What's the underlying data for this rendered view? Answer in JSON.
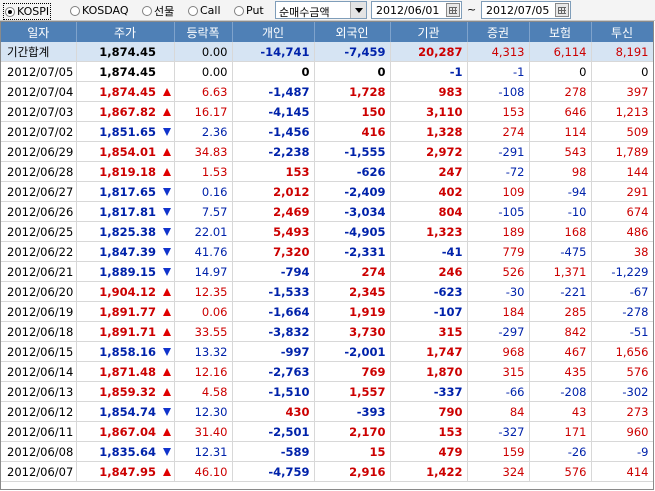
{
  "market_radios": [
    {
      "label": "KOSPI",
      "checked": true
    },
    {
      "label": "KOSDAQ",
      "checked": false
    },
    {
      "label": "선물",
      "checked": false
    },
    {
      "label": "Call",
      "checked": false
    },
    {
      "label": "Put",
      "checked": false
    }
  ],
  "metric_select": {
    "value": "순매수금액"
  },
  "date_range": {
    "start": "2012/06/01",
    "separator": "~",
    "end": "2012/07/05"
  },
  "table": {
    "headers": [
      "일자",
      "주가",
      "등락폭",
      "개인",
      "외국인",
      "기관",
      "증권",
      "보험",
      "투신"
    ],
    "total": {
      "date": "기간합계",
      "price": "1,874.45",
      "change": "0.00",
      "individual": "-14,741",
      "foreign": "-7,459",
      "institution": "20,287",
      "securities": "4,313",
      "insurance": "6,114",
      "trust": "8,191"
    },
    "rows": [
      {
        "date": "2012/07/05",
        "price": "1,874.45",
        "dir": "none",
        "change": "0.00",
        "individual": "0",
        "foreign": "0",
        "institution": "-1",
        "securities": "-1",
        "insurance": "0",
        "trust": "0"
      },
      {
        "date": "2012/07/04",
        "price": "1,874.45",
        "dir": "up",
        "change": "6.63",
        "individual": "-1,487",
        "foreign": "1,728",
        "institution": "983",
        "securities": "-108",
        "insurance": "278",
        "trust": "397"
      },
      {
        "date": "2012/07/03",
        "price": "1,867.82",
        "dir": "up",
        "change": "16.17",
        "individual": "-4,145",
        "foreign": "150",
        "institution": "3,110",
        "securities": "153",
        "insurance": "646",
        "trust": "1,213"
      },
      {
        "date": "2012/07/02",
        "price": "1,851.65",
        "dir": "down",
        "change": "2.36",
        "individual": "-1,456",
        "foreign": "416",
        "institution": "1,328",
        "securities": "274",
        "insurance": "114",
        "trust": "509"
      },
      {
        "date": "2012/06/29",
        "price": "1,854.01",
        "dir": "up",
        "change": "34.83",
        "individual": "-2,238",
        "foreign": "-1,555",
        "institution": "2,972",
        "securities": "-291",
        "insurance": "543",
        "trust": "1,789"
      },
      {
        "date": "2012/06/28",
        "price": "1,819.18",
        "dir": "up",
        "change": "1.53",
        "individual": "153",
        "foreign": "-626",
        "institution": "247",
        "securities": "-72",
        "insurance": "98",
        "trust": "144"
      },
      {
        "date": "2012/06/27",
        "price": "1,817.65",
        "dir": "down",
        "change": "0.16",
        "individual": "2,012",
        "foreign": "-2,409",
        "institution": "402",
        "securities": "109",
        "insurance": "-94",
        "trust": "291"
      },
      {
        "date": "2012/06/26",
        "price": "1,817.81",
        "dir": "down",
        "change": "7.57",
        "individual": "2,469",
        "foreign": "-3,034",
        "institution": "804",
        "securities": "-105",
        "insurance": "-10",
        "trust": "674"
      },
      {
        "date": "2012/06/25",
        "price": "1,825.38",
        "dir": "down",
        "change": "22.01",
        "individual": "5,493",
        "foreign": "-4,905",
        "institution": "1,323",
        "securities": "189",
        "insurance": "168",
        "trust": "486"
      },
      {
        "date": "2012/06/22",
        "price": "1,847.39",
        "dir": "down",
        "change": "41.76",
        "individual": "7,320",
        "foreign": "-2,331",
        "institution": "-41",
        "securities": "779",
        "insurance": "-475",
        "trust": "38"
      },
      {
        "date": "2012/06/21",
        "price": "1,889.15",
        "dir": "down",
        "change": "14.97",
        "individual": "-794",
        "foreign": "274",
        "institution": "246",
        "securities": "526",
        "insurance": "1,371",
        "trust": "-1,229"
      },
      {
        "date": "2012/06/20",
        "price": "1,904.12",
        "dir": "up",
        "change": "12.35",
        "individual": "-1,533",
        "foreign": "2,345",
        "institution": "-623",
        "securities": "-30",
        "insurance": "-221",
        "trust": "-67"
      },
      {
        "date": "2012/06/19",
        "price": "1,891.77",
        "dir": "up",
        "change": "0.06",
        "individual": "-1,664",
        "foreign": "1,919",
        "institution": "-107",
        "securities": "184",
        "insurance": "285",
        "trust": "-278"
      },
      {
        "date": "2012/06/18",
        "price": "1,891.71",
        "dir": "up",
        "change": "33.55",
        "individual": "-3,832",
        "foreign": "3,730",
        "institution": "315",
        "securities": "-297",
        "insurance": "842",
        "trust": "-51"
      },
      {
        "date": "2012/06/15",
        "price": "1,858.16",
        "dir": "down",
        "change": "13.32",
        "individual": "-997",
        "foreign": "-2,001",
        "institution": "1,747",
        "securities": "968",
        "insurance": "467",
        "trust": "1,656"
      },
      {
        "date": "2012/06/14",
        "price": "1,871.48",
        "dir": "up",
        "change": "12.16",
        "individual": "-2,763",
        "foreign": "769",
        "institution": "1,870",
        "securities": "315",
        "insurance": "435",
        "trust": "576"
      },
      {
        "date": "2012/06/13",
        "price": "1,859.32",
        "dir": "up",
        "change": "4.58",
        "individual": "-1,510",
        "foreign": "1,557",
        "institution": "-337",
        "securities": "-66",
        "insurance": "-208",
        "trust": "-302"
      },
      {
        "date": "2012/06/12",
        "price": "1,854.74",
        "dir": "down",
        "change": "12.30",
        "individual": "430",
        "foreign": "-393",
        "institution": "790",
        "securities": "84",
        "insurance": "43",
        "trust": "273"
      },
      {
        "date": "2012/06/11",
        "price": "1,867.04",
        "dir": "up",
        "change": "31.40",
        "individual": "-2,501",
        "foreign": "2,170",
        "institution": "153",
        "securities": "-327",
        "insurance": "171",
        "trust": "960"
      },
      {
        "date": "2012/06/08",
        "price": "1,835.64",
        "dir": "down",
        "change": "12.31",
        "individual": "-589",
        "foreign": "15",
        "institution": "479",
        "securities": "159",
        "insurance": "-26",
        "trust": "-9"
      },
      {
        "date": "2012/06/07",
        "price": "1,847.95",
        "dir": "up",
        "change": "46.10",
        "individual": "-4,759",
        "foreign": "2,916",
        "institution": "1,422",
        "securities": "324",
        "insurance": "576",
        "trust": "414"
      }
    ]
  },
  "colors": {
    "header_bg": "#4f80b6",
    "total_bg": "#d6e4f3",
    "up": "#cc0000",
    "down": "#0022aa"
  }
}
